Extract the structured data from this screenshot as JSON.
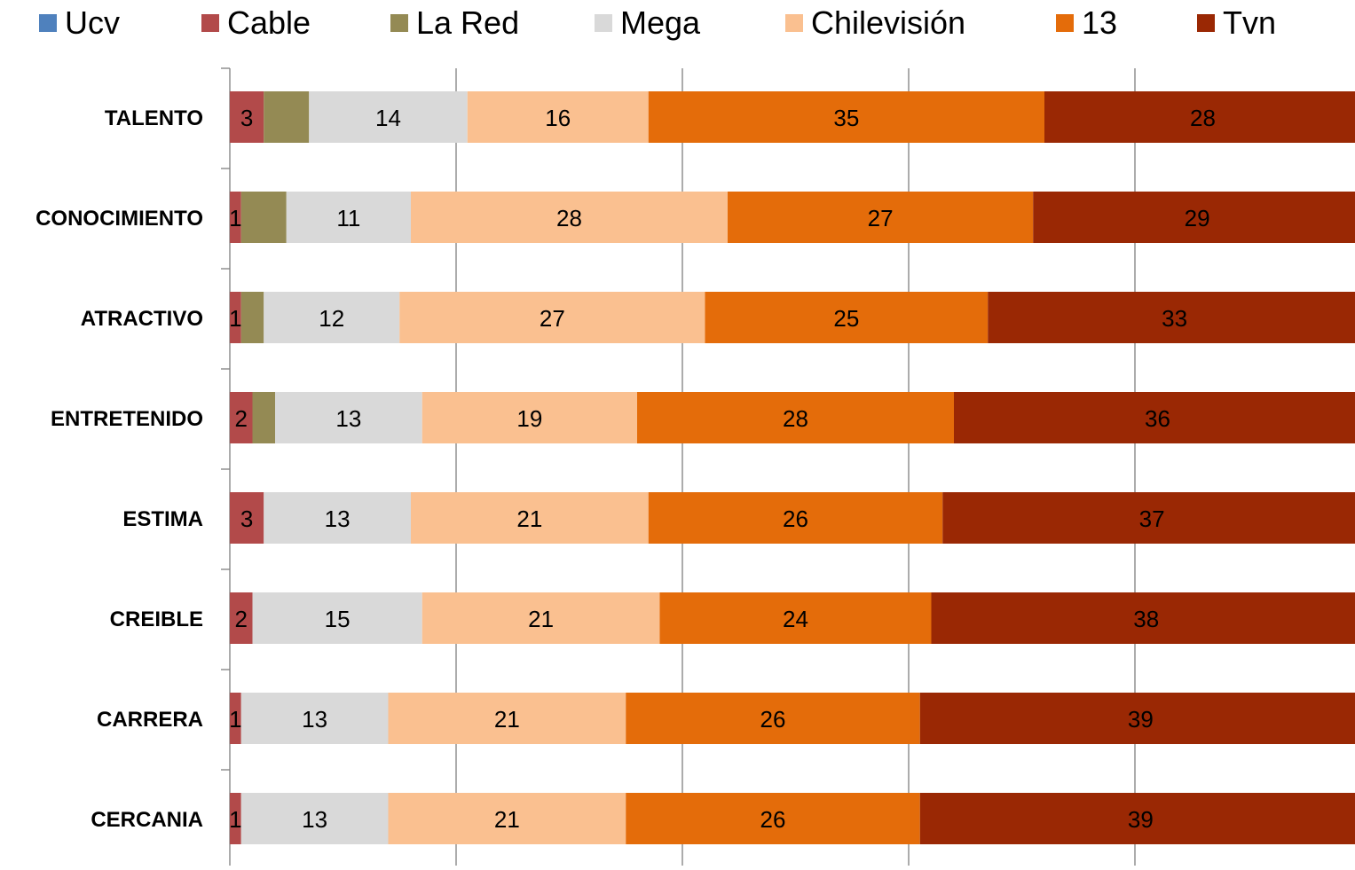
{
  "chart_data": {
    "type": "bar",
    "orientation": "horizontal",
    "stacked": true,
    "categories": [
      "TALENTO",
      "CONOCIMIENTO",
      "ATRACTIVO",
      "ENTRETENIDO",
      "ESTIMA",
      "CREIBLE",
      "CARRERA",
      "CERCANIA"
    ],
    "series": [
      {
        "name": "Ucv",
        "color": "#4F81BD",
        "values": [
          0,
          0,
          0,
          0,
          0,
          0,
          0,
          0
        ]
      },
      {
        "name": "Cable",
        "color": "#B24A4A",
        "values": [
          3,
          1,
          1,
          2,
          3,
          2,
          1,
          1
        ]
      },
      {
        "name": "La Red",
        "color": "#948A54",
        "values": [
          4,
          4,
          2,
          2,
          0,
          0,
          0,
          0
        ]
      },
      {
        "name": "Mega",
        "color": "#D9D9D9",
        "values": [
          14,
          11,
          12,
          13,
          13,
          15,
          13,
          13
        ]
      },
      {
        "name": "Chilevisión",
        "color": "#FAC090",
        "values": [
          16,
          28,
          27,
          19,
          21,
          21,
          21,
          21
        ]
      },
      {
        "name": "13",
        "color": "#E46C0A",
        "values": [
          35,
          27,
          25,
          28,
          26,
          24,
          26,
          26
        ]
      },
      {
        "name": "Tvn",
        "color": "#9A2804",
        "values": [
          28,
          29,
          33,
          36,
          37,
          38,
          39,
          39
        ]
      }
    ],
    "data_labels": [
      {
        "series": "Cable",
        "labels": [
          "3",
          "1",
          "1",
          "2",
          "3",
          "2",
          "1",
          "1"
        ]
      },
      {
        "series": "Mega",
        "labels": [
          "14",
          "11",
          "12",
          "13",
          "13",
          "15",
          "13",
          "13"
        ]
      },
      {
        "series": "Chilevisión",
        "labels": [
          "16",
          "28",
          "27",
          "19",
          "21",
          "21",
          "21",
          "21"
        ]
      },
      {
        "series": "13",
        "labels": [
          "35",
          "27",
          "25",
          "28",
          "26",
          "24",
          "26",
          "26"
        ]
      },
      {
        "series": "Tvn",
        "labels": [
          "28",
          "29",
          "33",
          "36",
          "37",
          "38",
          "39",
          "39"
        ]
      }
    ],
    "xlim": [
      0,
      100
    ],
    "x_gridlines": [
      20,
      40,
      60,
      80
    ],
    "grid": true,
    "legend_position": "top"
  }
}
